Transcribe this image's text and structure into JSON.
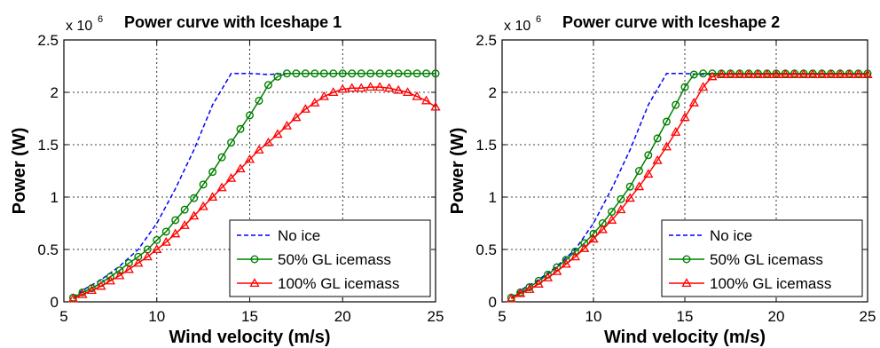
{
  "chart_data": [
    {
      "type": "line",
      "title": "Power curve with Iceshape 1",
      "xlabel": "Wind velocity (m/s)",
      "ylabel": "Power (W)",
      "y_exponent": "x 10",
      "y_exponent_power": "6",
      "xlim": [
        5,
        25
      ],
      "ylim": [
        0,
        2500000
      ],
      "x_ticks": [
        5,
        10,
        15,
        20,
        25
      ],
      "y_ticks": [
        0,
        500000,
        1000000,
        1500000,
        2000000,
        2500000
      ],
      "y_tick_labels": [
        "0",
        "0.5",
        "1",
        "1.5",
        "2",
        "2.5"
      ],
      "grid": true,
      "legend_position": "bottom-right",
      "series": [
        {
          "name": "No ice",
          "color": "#0000ff",
          "style": "dashed",
          "marker": "none",
          "x": [
            5.5,
            6,
            7,
            8,
            9,
            10,
            11,
            12,
            13,
            14,
            15,
            16,
            17,
            18,
            19,
            20,
            21,
            22,
            23,
            24,
            25
          ],
          "values": [
            40000,
            110000,
            210000,
            340000,
            500000,
            750000,
            1080000,
            1450000,
            1880000,
            2180000,
            2180000,
            2170000,
            2180000,
            2180000,
            2180000,
            2180000,
            2180000,
            2180000,
            2180000,
            2180000,
            2180000
          ]
        },
        {
          "name": "50% GL icemass",
          "color": "#008000",
          "style": "solid",
          "marker": "circle",
          "x": [
            5.5,
            6,
            6.5,
            7,
            7.5,
            8,
            8.5,
            9,
            9.5,
            10,
            10.5,
            11,
            11.5,
            12,
            12.5,
            13,
            13.5,
            14,
            14.5,
            15,
            15.5,
            16,
            16.5,
            17,
            17.5,
            18,
            18.5,
            19,
            19.5,
            20,
            20.5,
            21,
            21.5,
            22,
            22.5,
            23,
            23.5,
            24,
            24.5,
            25
          ],
          "values": [
            40000,
            90000,
            130000,
            180000,
            240000,
            300000,
            370000,
            430000,
            500000,
            590000,
            670000,
            780000,
            880000,
            990000,
            1120000,
            1240000,
            1380000,
            1520000,
            1650000,
            1780000,
            1920000,
            2070000,
            2150000,
            2180000,
            2180000,
            2180000,
            2180000,
            2180000,
            2180000,
            2180000,
            2180000,
            2180000,
            2180000,
            2180000,
            2180000,
            2180000,
            2180000,
            2180000,
            2180000,
            2180000
          ]
        },
        {
          "name": "100% GL icemass",
          "color": "#ff0000",
          "style": "solid",
          "marker": "triangle",
          "x": [
            5.5,
            6,
            6.5,
            7,
            7.5,
            8,
            8.5,
            9,
            9.5,
            10,
            10.5,
            11,
            11.5,
            12,
            12.5,
            13,
            13.5,
            14,
            14.5,
            15,
            15.5,
            16,
            16.5,
            17,
            17.5,
            18,
            18.5,
            19,
            19.5,
            20,
            20.5,
            21,
            21.5,
            22,
            22.5,
            23,
            23.5,
            24,
            24.5,
            25
          ],
          "values": [
            30000,
            70000,
            110000,
            150000,
            200000,
            250000,
            310000,
            370000,
            430000,
            500000,
            570000,
            650000,
            730000,
            820000,
            910000,
            1000000,
            1090000,
            1180000,
            1270000,
            1360000,
            1450000,
            1520000,
            1600000,
            1680000,
            1760000,
            1840000,
            1900000,
            1960000,
            2000000,
            2030000,
            2040000,
            2040000,
            2050000,
            2050000,
            2040000,
            2020000,
            2000000,
            1960000,
            1920000,
            1860000
          ]
        }
      ]
    },
    {
      "type": "line",
      "title": "Power curve with Iceshape 2",
      "xlabel": "Wind velocity (m/s)",
      "ylabel": "Power (W)",
      "y_exponent": "x 10",
      "y_exponent_power": "6",
      "xlim": [
        5,
        25
      ],
      "ylim": [
        0,
        2500000
      ],
      "x_ticks": [
        5,
        10,
        15,
        20,
        25
      ],
      "y_ticks": [
        0,
        500000,
        1000000,
        1500000,
        2000000,
        2500000
      ],
      "y_tick_labels": [
        "0",
        "0.5",
        "1",
        "1.5",
        "2",
        "2.5"
      ],
      "grid": true,
      "legend_position": "bottom-right",
      "series": [
        {
          "name": "No ice",
          "color": "#0000ff",
          "style": "dashed",
          "marker": "none",
          "x": [
            5.5,
            6,
            7,
            8,
            9,
            10,
            11,
            12,
            13,
            14,
            15,
            16,
            17,
            18,
            19,
            20,
            21,
            22,
            23,
            24,
            25
          ],
          "values": [
            40000,
            110000,
            210000,
            340000,
            500000,
            750000,
            1080000,
            1450000,
            1880000,
            2180000,
            2180000,
            2170000,
            2180000,
            2180000,
            2180000,
            2180000,
            2180000,
            2180000,
            2180000,
            2180000,
            2180000
          ]
        },
        {
          "name": "50% GL icemass",
          "color": "#008000",
          "style": "solid",
          "marker": "circle",
          "x": [
            5.5,
            6,
            6.5,
            7,
            7.5,
            8,
            8.5,
            9,
            9.5,
            10,
            10.5,
            11,
            11.5,
            12,
            12.5,
            13,
            13.5,
            14,
            14.5,
            15,
            15.5,
            16,
            16.5,
            17,
            17.5,
            18,
            18.5,
            19,
            19.5,
            20,
            20.5,
            21,
            21.5,
            22,
            22.5,
            23,
            23.5,
            24,
            24.5,
            25
          ],
          "values": [
            40000,
            90000,
            140000,
            200000,
            260000,
            330000,
            400000,
            480000,
            560000,
            650000,
            750000,
            860000,
            980000,
            1100000,
            1250000,
            1400000,
            1560000,
            1720000,
            1880000,
            2050000,
            2170000,
            2180000,
            2180000,
            2180000,
            2180000,
            2180000,
            2180000,
            2180000,
            2180000,
            2180000,
            2180000,
            2180000,
            2180000,
            2180000,
            2180000,
            2180000,
            2180000,
            2180000,
            2180000,
            2180000
          ]
        },
        {
          "name": "100% GL icemass",
          "color": "#ff0000",
          "style": "solid",
          "marker": "triangle",
          "x": [
            5.5,
            6,
            6.5,
            7,
            7.5,
            8,
            8.5,
            9,
            9.5,
            10,
            10.5,
            11,
            11.5,
            12,
            12.5,
            13,
            13.5,
            14,
            14.5,
            15,
            15.5,
            16,
            16.5,
            17,
            17.5,
            18,
            18.5,
            19,
            19.5,
            20,
            20.5,
            21,
            21.5,
            22,
            22.5,
            23,
            23.5,
            24,
            24.5,
            25
          ],
          "values": [
            30000,
            80000,
            120000,
            170000,
            230000,
            290000,
            360000,
            430000,
            510000,
            600000,
            690000,
            780000,
            880000,
            990000,
            1100000,
            1220000,
            1350000,
            1480000,
            1620000,
            1760000,
            1900000,
            2050000,
            2150000,
            2170000,
            2170000,
            2170000,
            2170000,
            2170000,
            2170000,
            2170000,
            2170000,
            2170000,
            2170000,
            2170000,
            2170000,
            2170000,
            2170000,
            2170000,
            2170000,
            2170000
          ]
        }
      ]
    }
  ]
}
